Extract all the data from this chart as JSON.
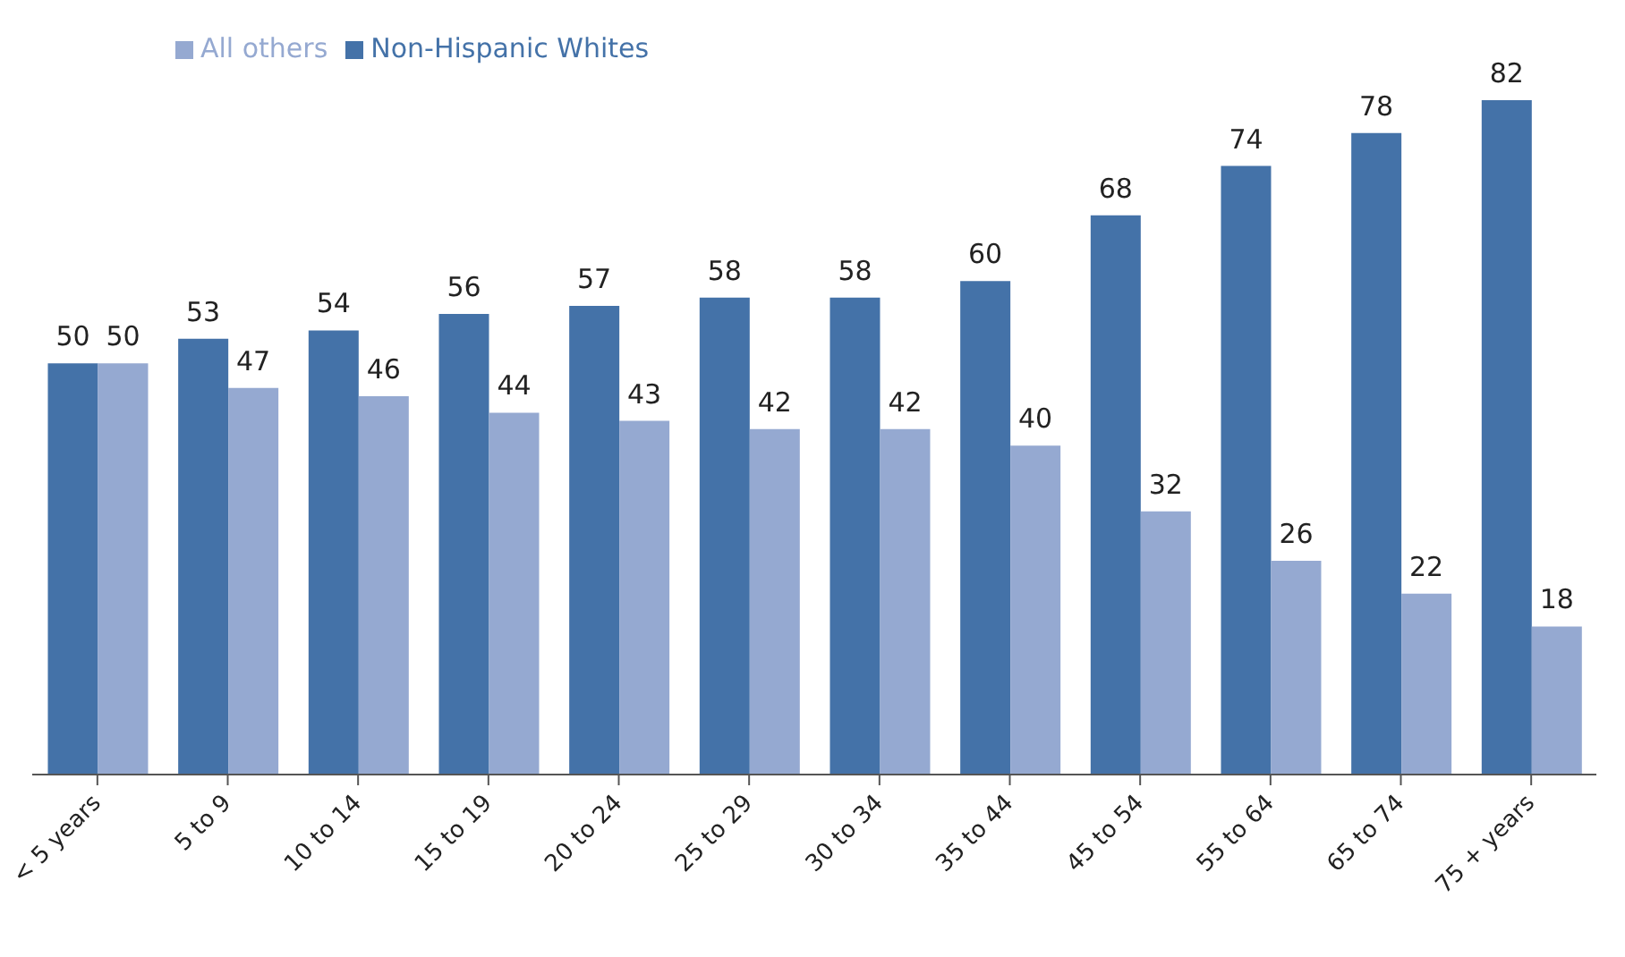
{
  "chart_data": {
    "type": "bar",
    "categories": [
      "< 5 years",
      "5 to 9",
      "10 to 14",
      "15 to 19",
      "20 to 24",
      "25 to 29",
      "30 to 34",
      "35 to 44",
      "45 to 54",
      "55 to 64",
      "65 to 74",
      "75 + years"
    ],
    "series": [
      {
        "name": "Non-Hispanic Whites",
        "color": "#4472a8",
        "values": [
          50,
          53,
          54,
          56,
          57,
          58,
          58,
          60,
          68,
          74,
          78,
          82
        ]
      },
      {
        "name": "All others",
        "color": "#95a9d1",
        "values": [
          50,
          47,
          46,
          44,
          43,
          42,
          42,
          40,
          32,
          26,
          22,
          18
        ]
      }
    ],
    "data_labels": true,
    "legend": "top left",
    "grid": false,
    "tick_labels": "x"
  }
}
